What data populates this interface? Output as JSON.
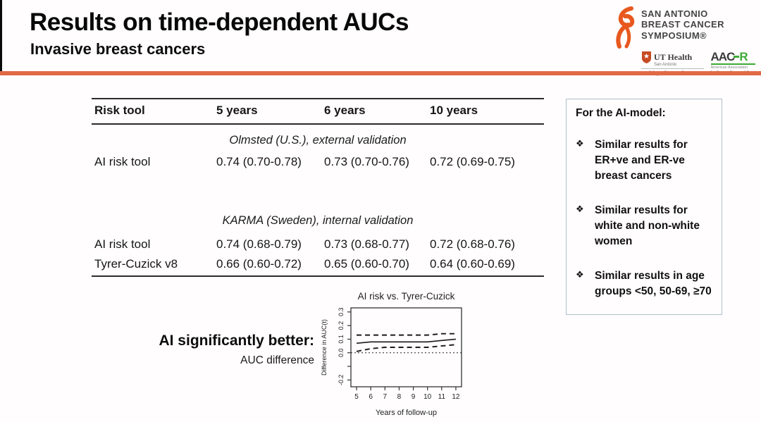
{
  "slide": {
    "title": "Results on time-dependent AUCs",
    "subtitle": "Invasive breast cancers"
  },
  "logo": {
    "lines": [
      "SAN ANTONIO",
      "BREAST CANCER",
      "SYMPOSIUM®"
    ],
    "ut_health": {
      "name": "UT Health",
      "sub": "San Antonio",
      "center": "Mays Cancer Center"
    },
    "aacr": {
      "abbr_main": "AAC",
      "abbr_last": "R",
      "sub1": "American Association",
      "sub2": "for Cancer Research®"
    }
  },
  "table": {
    "columns": [
      "Risk tool",
      "5 years",
      "6 years",
      "10 years"
    ],
    "sections": [
      {
        "caption": "Olmsted (U.S.), external validation",
        "rows": [
          {
            "tool": "AI risk tool",
            "values": [
              "0.74 (0.70-0.78)",
              "0.73 (0.70-0.76)",
              "0.72 (0.69-0.75)"
            ]
          }
        ]
      },
      {
        "caption": "KARMA (Sweden), internal validation",
        "rows": [
          {
            "tool": "AI risk tool",
            "values": [
              "0.74 (0.68-0.79)",
              "0.73 (0.68-0.77)",
              "0.72 (0.68-0.76)"
            ]
          },
          {
            "tool": "Tyrer-Cuzick v8",
            "values": [
              "0.66 (0.60-0.72)",
              "0.65 (0.60-0.70)",
              "0.64 (0.60-0.69)"
            ]
          }
        ]
      }
    ]
  },
  "side_panel": {
    "heading": "For the AI-model:",
    "bullet_glyph": "❖",
    "bullets": [
      "Similar results for ER+ve and ER-ve breast cancers",
      "Similar results for white and non-white women",
      "Similar results in age groups <50, 50-69, ≥70"
    ]
  },
  "annotation": {
    "headline": "AI significantly better:",
    "subline": "AUC difference"
  },
  "chart_data": {
    "type": "line",
    "title": "AI risk vs. Tyrer-Cuzick",
    "xlabel": "Years of follow-up",
    "ylabel": "Difference in AUC(t)",
    "x": [
      5,
      6,
      7,
      8,
      9,
      10,
      11,
      12
    ],
    "xlim": [
      4.6,
      12.4
    ],
    "ylim": [
      -0.25,
      0.33
    ],
    "yticks": [
      0.3,
      0.2,
      0.1,
      0.0,
      -0.1,
      -0.2
    ],
    "ytick_labels": [
      "0.3",
      "0.2",
      "0.1",
      "0.0",
      "",
      "-0.2"
    ],
    "series": [
      {
        "style": "solid",
        "values": [
          0.07,
          0.08,
          0.08,
          0.08,
          0.08,
          0.08,
          0.09,
          0.1
        ]
      },
      {
        "style": "dashed",
        "values": [
          0.13,
          0.13,
          0.13,
          0.13,
          0.13,
          0.13,
          0.14,
          0.14
        ]
      },
      {
        "style": "dashed",
        "values": [
          0.01,
          0.03,
          0.04,
          0.04,
          0.04,
          0.04,
          0.05,
          0.06
        ]
      }
    ],
    "reference_line_y": 0.0,
    "grid": false,
    "legend": false
  },
  "colors": {
    "accent_rule": "#e06a45",
    "ribbon_orange": "#e8581f",
    "panel_border": "#aebfc9",
    "aacr_green": "#3baa35",
    "shield_red": "#c64a22"
  }
}
